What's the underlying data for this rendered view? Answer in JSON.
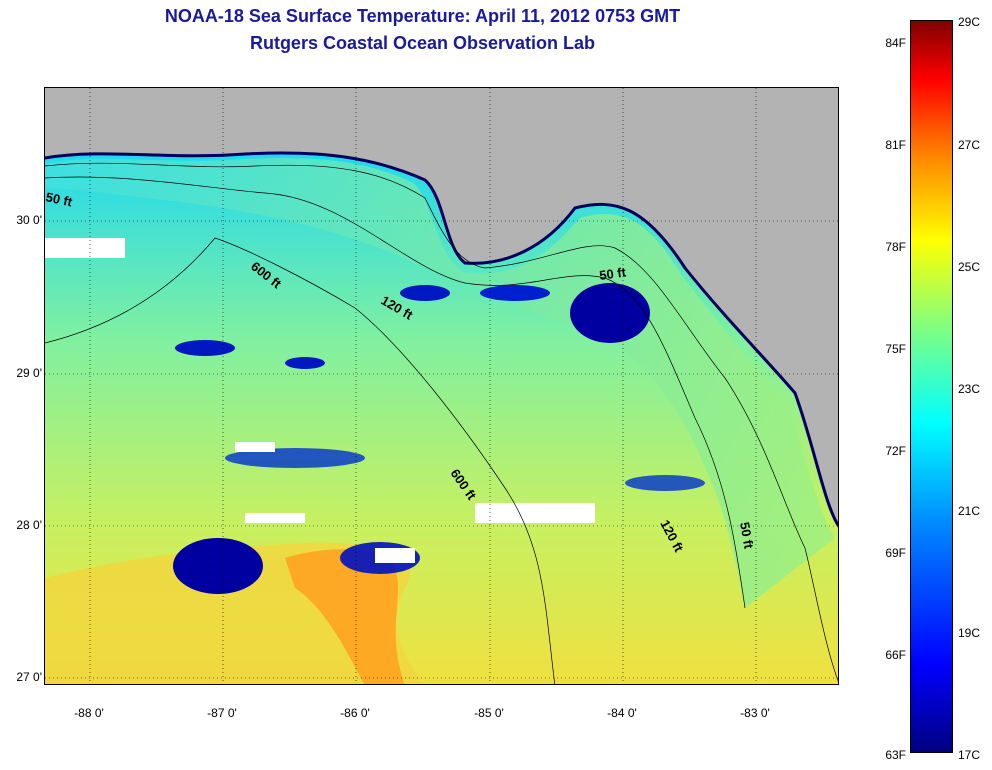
{
  "title": "NOAA-18 Sea Surface Temperature:  April 11, 2012 0753 GMT",
  "subtitle": "Rutgers Coastal Ocean Observation Lab",
  "y_ticks": [
    "30 0'",
    "29 0'",
    "28 0'",
    "27 0'"
  ],
  "x_ticks": [
    "-88 0'",
    "-87 0'",
    "-86 0'",
    "-85 0'",
    "-84 0'",
    "-83 0'"
  ],
  "contours": [
    "50 ft",
    "600 ft",
    "120 ft",
    "50 ft",
    "600 ft",
    "120 ft",
    "50 ft"
  ],
  "colorbar_f": [
    "84F",
    "81F",
    "78F",
    "75F",
    "72F",
    "69F",
    "66F",
    "63F"
  ],
  "colorbar_c": [
    "29C",
    "27C",
    "25C",
    "23C",
    "21C",
    "19C",
    "17C"
  ],
  "colors": {
    "land": "#b3b3b3",
    "title": "#1a1a9c",
    "ocean_warm": "#c8f050",
    "ocean_cool": "#00e0ff",
    "cold_core": "#0000a0",
    "warm": "#ffb000"
  }
}
